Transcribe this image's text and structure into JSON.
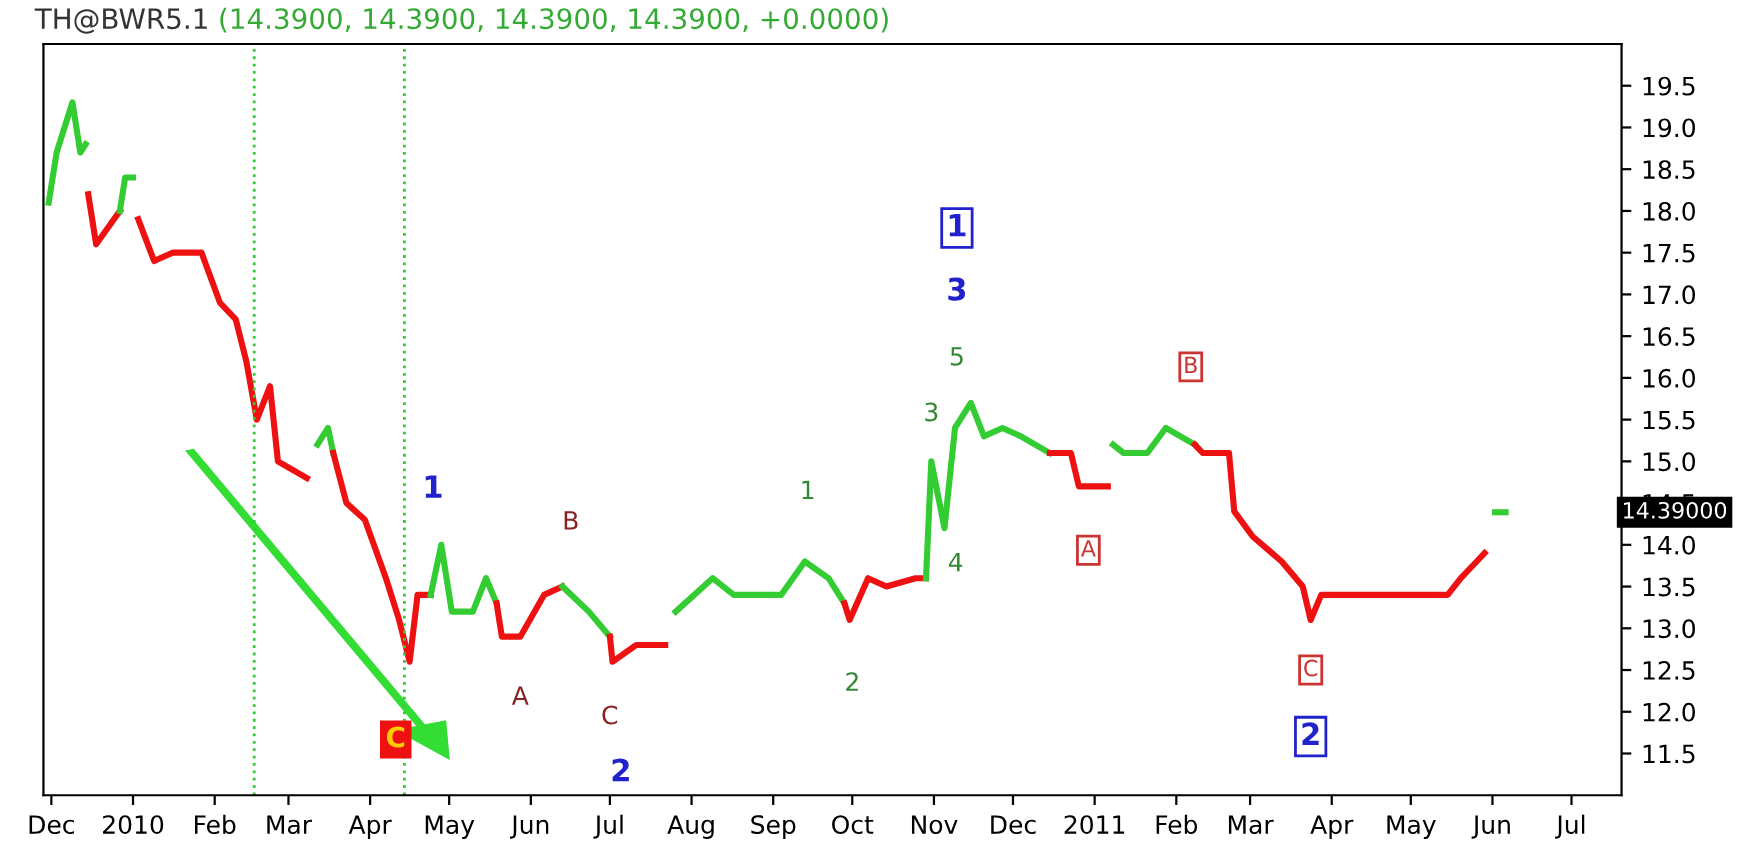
{
  "chart_data": {
    "type": "line",
    "title": "TH@BWR5.1",
    "subtitle": "(14.3900, 14.3900, 14.3900, 14.3900, +0.0000)",
    "xlim": [
      "2009-11-28",
      "2011-07-20"
    ],
    "ylim": [
      11.0,
      20.0
    ],
    "xticks": [
      {
        "value": "2009-12-01",
        "label": "Dec"
      },
      {
        "value": "2010-01-01",
        "label": "2010"
      },
      {
        "value": "2010-02-01",
        "label": "Feb"
      },
      {
        "value": "2010-03-01",
        "label": "Mar"
      },
      {
        "value": "2010-04-01",
        "label": "Apr"
      },
      {
        "value": "2010-05-01",
        "label": "May"
      },
      {
        "value": "2010-06-01",
        "label": "Jun"
      },
      {
        "value": "2010-07-01",
        "label": "Jul"
      },
      {
        "value": "2010-08-01",
        "label": "Aug"
      },
      {
        "value": "2010-09-01",
        "label": "Sep"
      },
      {
        "value": "2010-10-01",
        "label": "Oct"
      },
      {
        "value": "2010-11-01",
        "label": "Nov"
      },
      {
        "value": "2010-12-01",
        "label": "Dec"
      },
      {
        "value": "2011-01-01",
        "label": "2011"
      },
      {
        "value": "2011-02-01",
        "label": "Feb"
      },
      {
        "value": "2011-03-01",
        "label": "Mar"
      },
      {
        "value": "2011-04-01",
        "label": "Apr"
      },
      {
        "value": "2011-05-01",
        "label": "May"
      },
      {
        "value": "2011-06-01",
        "label": "Jun"
      },
      {
        "value": "2011-07-01",
        "label": "Jul"
      }
    ],
    "yticks": [
      11.5,
      {
        "value": 12,
        "label": "12.0"
      },
      12.5,
      {
        "value": 13,
        "label": "13.0"
      },
      13.5,
      {
        "value": 14,
        "label": "14.0"
      },
      14.5,
      {
        "value": 15,
        "label": "15.0"
      },
      15.5,
      {
        "value": 16,
        "label": "16.0"
      },
      16.5,
      {
        "value": 17,
        "label": "17.0"
      },
      17.5,
      {
        "value": 18,
        "label": "18.0"
      },
      18.5,
      {
        "value": 19,
        "label": "19.0"
      },
      19.5
    ],
    "grid": false,
    "marker": "none",
    "line_style": "solid",
    "series": [
      {
        "color": "#33cc33",
        "x": [
          "2009-11-30",
          "2009-12-03",
          "2009-12-09",
          "2009-12-12",
          "2009-12-14"
        ],
        "values": [
          18.1,
          18.7,
          19.3,
          18.7,
          18.8
        ]
      },
      {
        "color": "#ee1111",
        "x": [
          "2009-12-15",
          "2009-12-18",
          "2009-12-27"
        ],
        "values": [
          18.2,
          17.6,
          18.0
        ]
      },
      {
        "color": "#33cc33",
        "x": [
          "2009-12-27",
          "2009-12-29",
          "2010-01-01"
        ],
        "values": [
          18.0,
          18.4,
          18.4
        ]
      },
      {
        "color": "#ee1111",
        "x": [
          "2010-01-03",
          "2010-01-09",
          "2010-01-16",
          "2010-01-27",
          "2010-02-03",
          "2010-02-09",
          "2010-02-13",
          "2010-02-17",
          "2010-02-22",
          "2010-02-25",
          "2010-03-08"
        ],
        "values": [
          17.9,
          17.4,
          17.5,
          17.5,
          16.9,
          16.7,
          16.2,
          15.5,
          15.9,
          15.0,
          14.8
        ]
      },
      {
        "color": "#33cc33",
        "x": [
          "2010-03-12",
          "2010-03-16",
          "2010-03-18"
        ],
        "values": [
          15.2,
          15.4,
          15.1
        ]
      },
      {
        "color": "#ee1111",
        "x": [
          "2010-03-18",
          "2010-03-23",
          "2010-03-30",
          "2010-04-07",
          "2010-04-12",
          "2010-04-16",
          "2010-04-19",
          "2010-04-24"
        ],
        "values": [
          15.1,
          14.5,
          14.3,
          13.6,
          13.1,
          12.6,
          13.4,
          13.4
        ]
      },
      {
        "color": "#33cc33",
        "x": [
          "2010-04-24",
          "2010-04-28",
          "2010-05-02",
          "2010-05-10",
          "2010-05-15",
          "2010-05-19"
        ],
        "values": [
          13.4,
          14.0,
          13.2,
          13.2,
          13.6,
          13.3
        ]
      },
      {
        "color": "#ee1111",
        "x": [
          "2010-05-19",
          "2010-05-21",
          "2010-05-28",
          "2010-06-06",
          "2010-06-13"
        ],
        "values": [
          13.3,
          12.9,
          12.9,
          13.4,
          13.5
        ]
      },
      {
        "color": "#33cc33",
        "x": [
          "2010-06-13",
          "2010-06-23",
          "2010-07-01"
        ],
        "values": [
          13.5,
          13.2,
          12.9
        ]
      },
      {
        "color": "#ee1111",
        "x": [
          "2010-07-01",
          "2010-07-02",
          "2010-07-11",
          "2010-07-22"
        ],
        "values": [
          12.9,
          12.6,
          12.8,
          12.8
        ]
      },
      {
        "color": "#33cc33",
        "x": [
          "2010-07-26",
          "2010-08-09",
          "2010-08-17",
          "2010-08-24",
          "2010-09-04",
          "2010-09-13",
          "2010-09-22",
          "2010-09-28"
        ],
        "values": [
          13.2,
          13.6,
          13.4,
          13.4,
          13.4,
          13.8,
          13.6,
          13.3
        ]
      },
      {
        "color": "#ee1111",
        "x": [
          "2010-09-28",
          "2010-09-30",
          "2010-10-07",
          "2010-10-14",
          "2010-10-25",
          "2010-10-29"
        ],
        "values": [
          13.3,
          13.1,
          13.6,
          13.5,
          13.6,
          13.6
        ]
      },
      {
        "color": "#33cc33",
        "x": [
          "2010-10-29",
          "2010-10-31",
          "2010-11-05",
          "2010-11-09",
          "2010-11-15",
          "2010-11-20",
          "2010-11-27",
          "2010-12-04",
          "2010-12-15"
        ],
        "values": [
          13.6,
          15.0,
          14.2,
          15.4,
          15.7,
          15.3,
          15.4,
          15.3,
          15.1
        ]
      },
      {
        "color": "#ee1111",
        "x": [
          "2010-12-15",
          "2010-12-23",
          "2010-12-26",
          "2011-01-06"
        ],
        "values": [
          15.1,
          15.1,
          14.7,
          14.7
        ]
      },
      {
        "color": "#33cc33",
        "x": [
          "2011-01-08",
          "2011-01-12",
          "2011-01-21",
          "2011-01-28",
          "2011-02-08"
        ],
        "values": [
          15.2,
          15.1,
          15.1,
          15.4,
          15.2
        ]
      },
      {
        "color": "#ee1111",
        "x": [
          "2011-02-08",
          "2011-02-11",
          "2011-02-21",
          "2011-02-23",
          "2011-03-02",
          "2011-03-13",
          "2011-03-21",
          "2011-03-24",
          "2011-03-28",
          "2011-04-15",
          "2011-05-15",
          "2011-05-20",
          "2011-05-26",
          "2011-05-29"
        ],
        "values": [
          15.2,
          15.1,
          15.1,
          14.4,
          14.1,
          13.8,
          13.5,
          13.1,
          13.4,
          13.4,
          13.4,
          13.6,
          13.8,
          13.9
        ]
      },
      {
        "color": "#33cc33",
        "x": [
          "2011-06-02",
          "2011-06-06"
        ],
        "values": [
          14.39,
          14.39
        ]
      }
    ],
    "ref_lines": [
      {
        "axis": "x",
        "value": "2010-02-16",
        "color": "#33cc33",
        "line_style": "dotted"
      },
      {
        "axis": "x",
        "value": "2010-04-14",
        "color": "#33cc33",
        "line_style": "dotted"
      }
    ],
    "annotations": [
      {
        "text": "C",
        "x": "2010-04-16",
        "y": 12.6
      },
      {
        "text": "1",
        "x": "2010-04-28",
        "y": 14.0
      },
      {
        "text": "A",
        "x": "2010-05-28",
        "y": 12.9
      },
      {
        "text": "B",
        "x": "2010-06-13",
        "y": 13.5
      },
      {
        "text": "C",
        "x": "2010-07-02",
        "y": 12.6
      },
      "2",
      {
        "text": "1",
        "x": "2010-09-13",
        "y": 13.8
      },
      {
        "text": "2",
        "x": "2010-09-30",
        "y": 13.1
      },
      {
        "text": "3",
        "x": "2010-10-31",
        "y": 15.0
      },
      {
        "text": "4",
        "x": "2010-11-05",
        "y": 14.2
      },
      {
        "text": "5",
        "x": "2010-11-15",
        "y": 15.7
      },
      "3",
      "1",
      {
        "text": "A",
        "x": "2011-01-06",
        "y": 14.7
      },
      {
        "text": "B",
        "x": "2011-01-28",
        "y": 15.4
      },
      {
        "text": "C",
        "x": "2011-03-24",
        "y": 13.1
      },
      "2",
      "14.39000"
    ]
  }
}
